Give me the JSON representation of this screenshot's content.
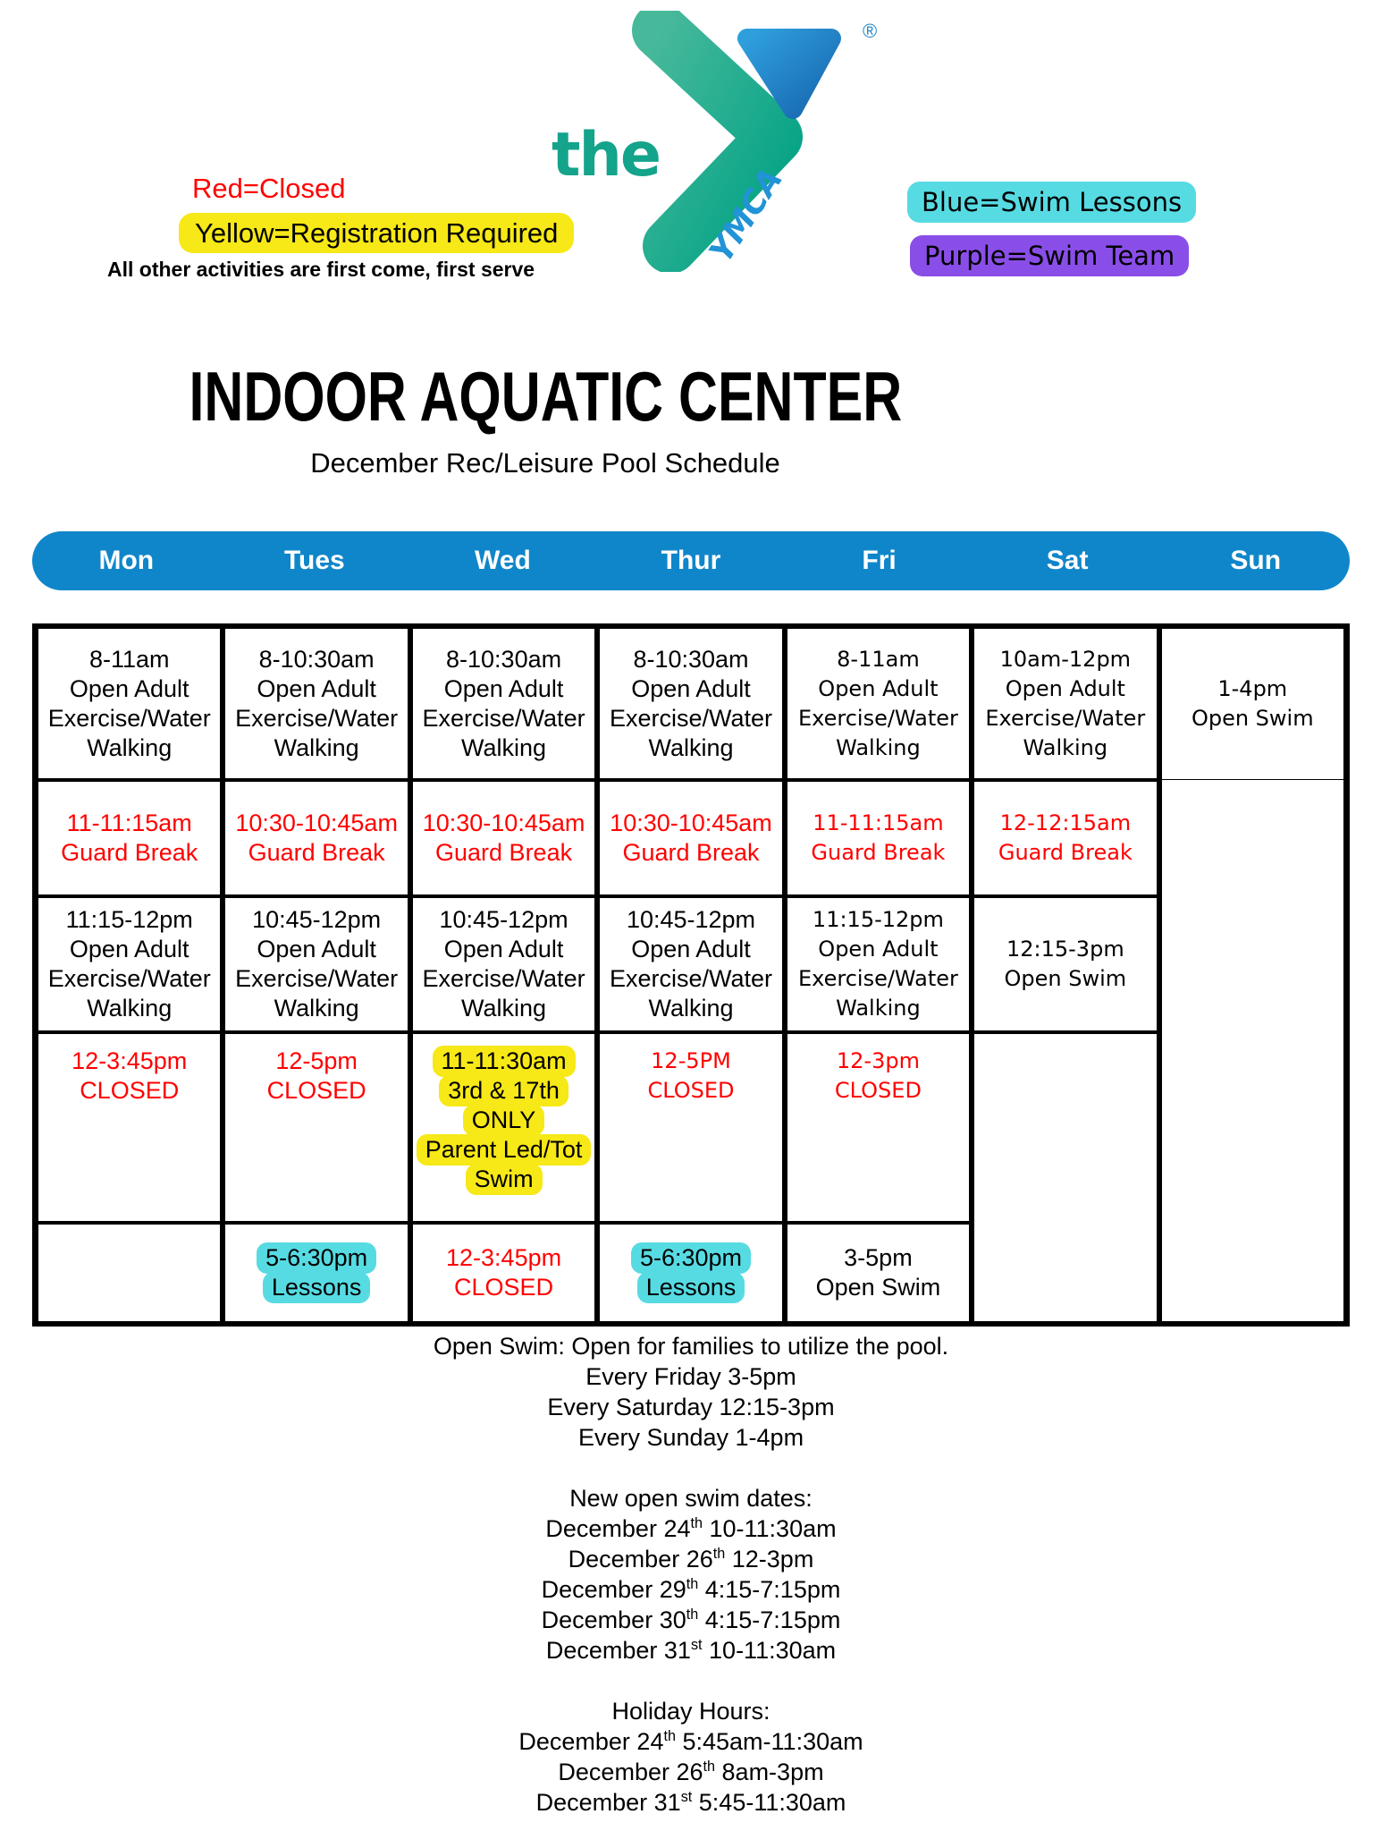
{
  "logo": {
    "the": "the",
    "ymca": "YMCA",
    "registered": "®"
  },
  "legend": {
    "red": "Red=Closed",
    "yellow": "Yellow=Registration Required",
    "note": "All other activities are first come, first serve",
    "blue": "Blue=Swim Lessons",
    "purple": "Purple=Swim Team"
  },
  "title": "INDOOR AQUATIC CENTER",
  "subtitle": "December Rec/Leisure Pool Schedule",
  "days": [
    "Mon",
    "Tues",
    "Wed",
    "Thur",
    "Fri",
    "Sat",
    "Sun"
  ],
  "colors": {
    "red": "#ff0000",
    "yellow": "#f7e817",
    "cyan": "#57dbe3",
    "purple": "#8a4ee8",
    "header_blue": "#1086ca",
    "teal": "#14a38b",
    "logo_blue": "#2193d6"
  },
  "schedule": {
    "cells": [
      {
        "day": 0,
        "row": 1,
        "lines": [
          "8-11am",
          "Open Adult",
          "Exercise/Water",
          "Walking"
        ]
      },
      {
        "day": 1,
        "row": 1,
        "lines": [
          "8-10:30am",
          "Open Adult",
          "Exercise/Water",
          "Walking"
        ]
      },
      {
        "day": 2,
        "row": 1,
        "lines": [
          "8-10:30am",
          "Open Adult",
          "Exercise/Water",
          "Walking"
        ]
      },
      {
        "day": 3,
        "row": 1,
        "lines": [
          "8-10:30am",
          "Open Adult",
          "Exercise/Water",
          "Walking"
        ]
      },
      {
        "day": 4,
        "row": 1,
        "font": "wide",
        "lines": [
          "8-11am",
          "Open Adult",
          "Exercise/Water",
          "Walking"
        ]
      },
      {
        "day": 5,
        "row": 1,
        "font": "wide",
        "lines": [
          "10am-12pm",
          "Open Adult",
          "Exercise/Water",
          "Walking"
        ]
      },
      {
        "day": 6,
        "row": 1,
        "font": "wide",
        "thin_bottom": true,
        "lines": [
          "1-4pm",
          "Open Swim"
        ]
      },
      {
        "day": 0,
        "row": 2,
        "color": "red",
        "lines": [
          "11-11:15am",
          "Guard Break"
        ]
      },
      {
        "day": 1,
        "row": 2,
        "color": "red",
        "lines": [
          "10:30-10:45am",
          "Guard Break"
        ]
      },
      {
        "day": 2,
        "row": 2,
        "color": "red",
        "lines": [
          "10:30-10:45am",
          "Guard Break"
        ]
      },
      {
        "day": 3,
        "row": 2,
        "color": "red",
        "lines": [
          "10:30-10:45am",
          "Guard Break"
        ]
      },
      {
        "day": 4,
        "row": 2,
        "color": "red",
        "font": "wide",
        "lines": [
          "11-11:15am",
          "Guard Break"
        ]
      },
      {
        "day": 5,
        "row": 2,
        "color": "red",
        "font": "wide",
        "lines": [
          "12-12:15am",
          "Guard Break"
        ]
      },
      {
        "day": 6,
        "row": 2,
        "rowspan": 4,
        "thin_top": true,
        "lines": []
      },
      {
        "day": 0,
        "row": 3,
        "lines": [
          "11:15-12pm",
          "Open Adult",
          "Exercise/Water",
          "Walking"
        ]
      },
      {
        "day": 1,
        "row": 3,
        "lines": [
          "10:45-12pm",
          "Open Adult",
          "Exercise/Water",
          "Walking"
        ]
      },
      {
        "day": 2,
        "row": 3,
        "lines": [
          "10:45-12pm",
          "Open Adult",
          "Exercise/Water",
          "Walking"
        ]
      },
      {
        "day": 3,
        "row": 3,
        "lines": [
          "10:45-12pm",
          "Open Adult",
          "Exercise/Water",
          "Walking"
        ]
      },
      {
        "day": 4,
        "row": 3,
        "font": "wide",
        "lines": [
          "11:15-12pm",
          "Open Adult",
          "Exercise/Water",
          "Walking"
        ]
      },
      {
        "day": 5,
        "row": 3,
        "font": "wide",
        "lines": [
          "12:15-3pm",
          "Open Swim"
        ]
      },
      {
        "day": 0,
        "row": 4,
        "color": "red",
        "align": "top",
        "lines": [
          "12-3:45pm",
          "CLOSED"
        ]
      },
      {
        "day": 1,
        "row": 4,
        "color": "red",
        "align": "top",
        "lines": [
          "12-5pm",
          "CLOSED"
        ]
      },
      {
        "day": 2,
        "row": 4,
        "hl": "yellow",
        "align": "top",
        "lines": [
          "11-11:30am",
          "3rd & 17th",
          "ONLY",
          "Parent Led/Tot",
          "Swim"
        ]
      },
      {
        "day": 3,
        "row": 4,
        "color": "red",
        "font": "wide",
        "align": "top",
        "lines": [
          "12-5PM",
          "CLOSED"
        ]
      },
      {
        "day": 4,
        "row": 4,
        "color": "red",
        "font": "wide",
        "align": "top",
        "lines": [
          "12-3pm",
          "CLOSED"
        ]
      },
      {
        "day": 5,
        "row": 4,
        "rowspan": 2,
        "lines": []
      },
      {
        "day": 0,
        "row": 5,
        "lines": []
      },
      {
        "day": 1,
        "row": 5,
        "hl": "cyan",
        "lines": [
          "5-6:30pm",
          "Lessons"
        ]
      },
      {
        "day": 2,
        "row": 5,
        "color": "red",
        "lines": [
          "12-3:45pm",
          "CLOSED"
        ]
      },
      {
        "day": 3,
        "row": 5,
        "hl": "cyan",
        "lines": [
          "5-6:30pm",
          "Lessons"
        ]
      },
      {
        "day": 4,
        "row": 5,
        "lines": [
          "3-5pm",
          "Open Swim"
        ]
      }
    ]
  },
  "notes": [
    {
      "lines": [
        [
          "Open Swim: Open for families to utilize the pool."
        ],
        [
          "Every Friday 3-5pm"
        ],
        [
          "Every Saturday 12:15-3pm"
        ],
        [
          "Every Sunday 1-4pm"
        ]
      ]
    },
    {
      "lines": [
        [
          "New open swim dates:"
        ],
        [
          "December 24",
          {
            "sup": "th"
          },
          " 10-11:30am"
        ],
        [
          "December 26",
          {
            "sup": "th"
          },
          " 12-3pm"
        ],
        [
          "December 29",
          {
            "sup": "th"
          },
          " 4:15-7:15pm"
        ],
        [
          "December 30",
          {
            "sup": "th"
          },
          " 4:15-7:15pm"
        ],
        [
          "December 31",
          {
            "sup": "st"
          },
          " 10-11:30am"
        ]
      ]
    },
    {
      "lines": [
        [
          "Holiday Hours:"
        ],
        [
          "December 24",
          {
            "sup": "th"
          },
          " 5:45am-11:30am"
        ],
        [
          "December 26",
          {
            "sup": "th"
          },
          " 8am-3pm"
        ],
        [
          "December 31",
          {
            "sup": "st"
          },
          " 5:45-11:30am"
        ]
      ]
    }
  ]
}
